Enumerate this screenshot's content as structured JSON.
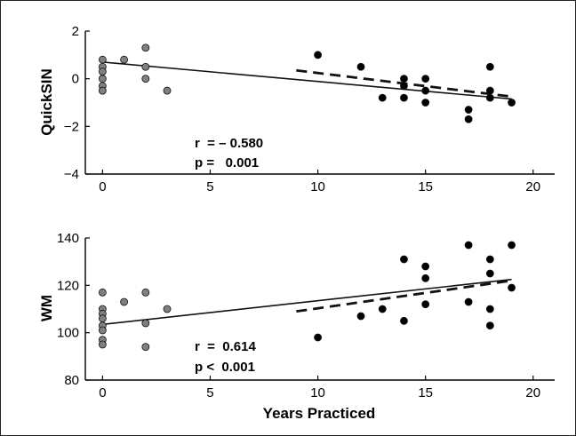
{
  "chart_data": [
    {
      "type": "scatter",
      "ylabel": "QuickSIN",
      "xlabel": "",
      "xlim": [
        -0.8,
        21
      ],
      "ylim": [
        -4,
        2
      ],
      "xticks": [
        0,
        5,
        10,
        15,
        20
      ],
      "yticks": [
        -4,
        -2,
        0,
        2
      ],
      "ytick_labels": [
        "−4",
        "−2",
        "0",
        "2"
      ],
      "grid": false,
      "annotations": [
        "r  = – 0.580",
        "p =   0.001"
      ],
      "group_colors": {
        "gray": "#808080",
        "black": "#000000"
      },
      "series": [
        {
          "color": "#808080",
          "points": [
            [
              0,
              0.8
            ],
            [
              0,
              0.5
            ],
            [
              0,
              0.3
            ],
            [
              0,
              0.0
            ],
            [
              0,
              -0.3
            ],
            [
              0,
              -0.5
            ],
            [
              1,
              0.8
            ],
            [
              2,
              1.3
            ],
            [
              2,
              0.5
            ],
            [
              2,
              0.0
            ],
            [
              3,
              -0.5
            ]
          ]
        },
        {
          "color": "#000000",
          "points": [
            [
              10,
              1.0
            ],
            [
              12,
              0.5
            ],
            [
              13,
              -0.8
            ],
            [
              14,
              0.0
            ],
            [
              14,
              -0.3
            ],
            [
              14,
              -0.8
            ],
            [
              15,
              0.0
            ],
            [
              15,
              -0.5
            ],
            [
              15,
              -1.0
            ],
            [
              17,
              -1.3
            ],
            [
              17,
              -1.7
            ],
            [
              18,
              0.5
            ],
            [
              18,
              -0.5
            ],
            [
              18,
              -0.8
            ],
            [
              19,
              -1.0
            ]
          ]
        }
      ],
      "fit_lines": [
        {
          "style": "solid",
          "x": [
            0,
            19
          ],
          "y": [
            0.7,
            -0.85
          ]
        },
        {
          "style": "dashed",
          "x": [
            9,
            19
          ],
          "y": [
            0.35,
            -0.75
          ]
        }
      ]
    },
    {
      "type": "scatter",
      "ylabel": "WM",
      "xlabel": "Years Practiced",
      "xlim": [
        -0.8,
        21
      ],
      "ylim": [
        80,
        140
      ],
      "xticks": [
        0,
        5,
        10,
        15,
        20
      ],
      "yticks": [
        80,
        100,
        120,
        140
      ],
      "ytick_labels": [
        "80",
        "100",
        "120",
        "140"
      ],
      "grid": false,
      "annotations": [
        "r  =  0.614",
        "p <  0.001"
      ],
      "group_colors": {
        "gray": "#808080",
        "black": "#000000"
      },
      "series": [
        {
          "color": "#808080",
          "points": [
            [
              0,
              117
            ],
            [
              0,
              110
            ],
            [
              0,
              108
            ],
            [
              0,
              106
            ],
            [
              0,
              103
            ],
            [
              0,
              101
            ],
            [
              0,
              97
            ],
            [
              0,
              95
            ],
            [
              1,
              113
            ],
            [
              2,
              117
            ],
            [
              2,
              104
            ],
            [
              2,
              94
            ],
            [
              3,
              110
            ]
          ]
        },
        {
          "color": "#000000",
          "points": [
            [
              10,
              98
            ],
            [
              12,
              107
            ],
            [
              13,
              110
            ],
            [
              14,
              131
            ],
            [
              14,
              105
            ],
            [
              15,
              128
            ],
            [
              15,
              123
            ],
            [
              15,
              112
            ],
            [
              17,
              137
            ],
            [
              17,
              113
            ],
            [
              18,
              131
            ],
            [
              18,
              125
            ],
            [
              18,
              110
            ],
            [
              18,
              103
            ],
            [
              19,
              137
            ],
            [
              19,
              119
            ]
          ]
        }
      ],
      "fit_lines": [
        {
          "style": "solid",
          "x": [
            0,
            19
          ],
          "y": [
            103.5,
            122.5
          ]
        },
        {
          "style": "dashed",
          "x": [
            9,
            19
          ],
          "y": [
            109,
            122
          ]
        }
      ]
    }
  ]
}
